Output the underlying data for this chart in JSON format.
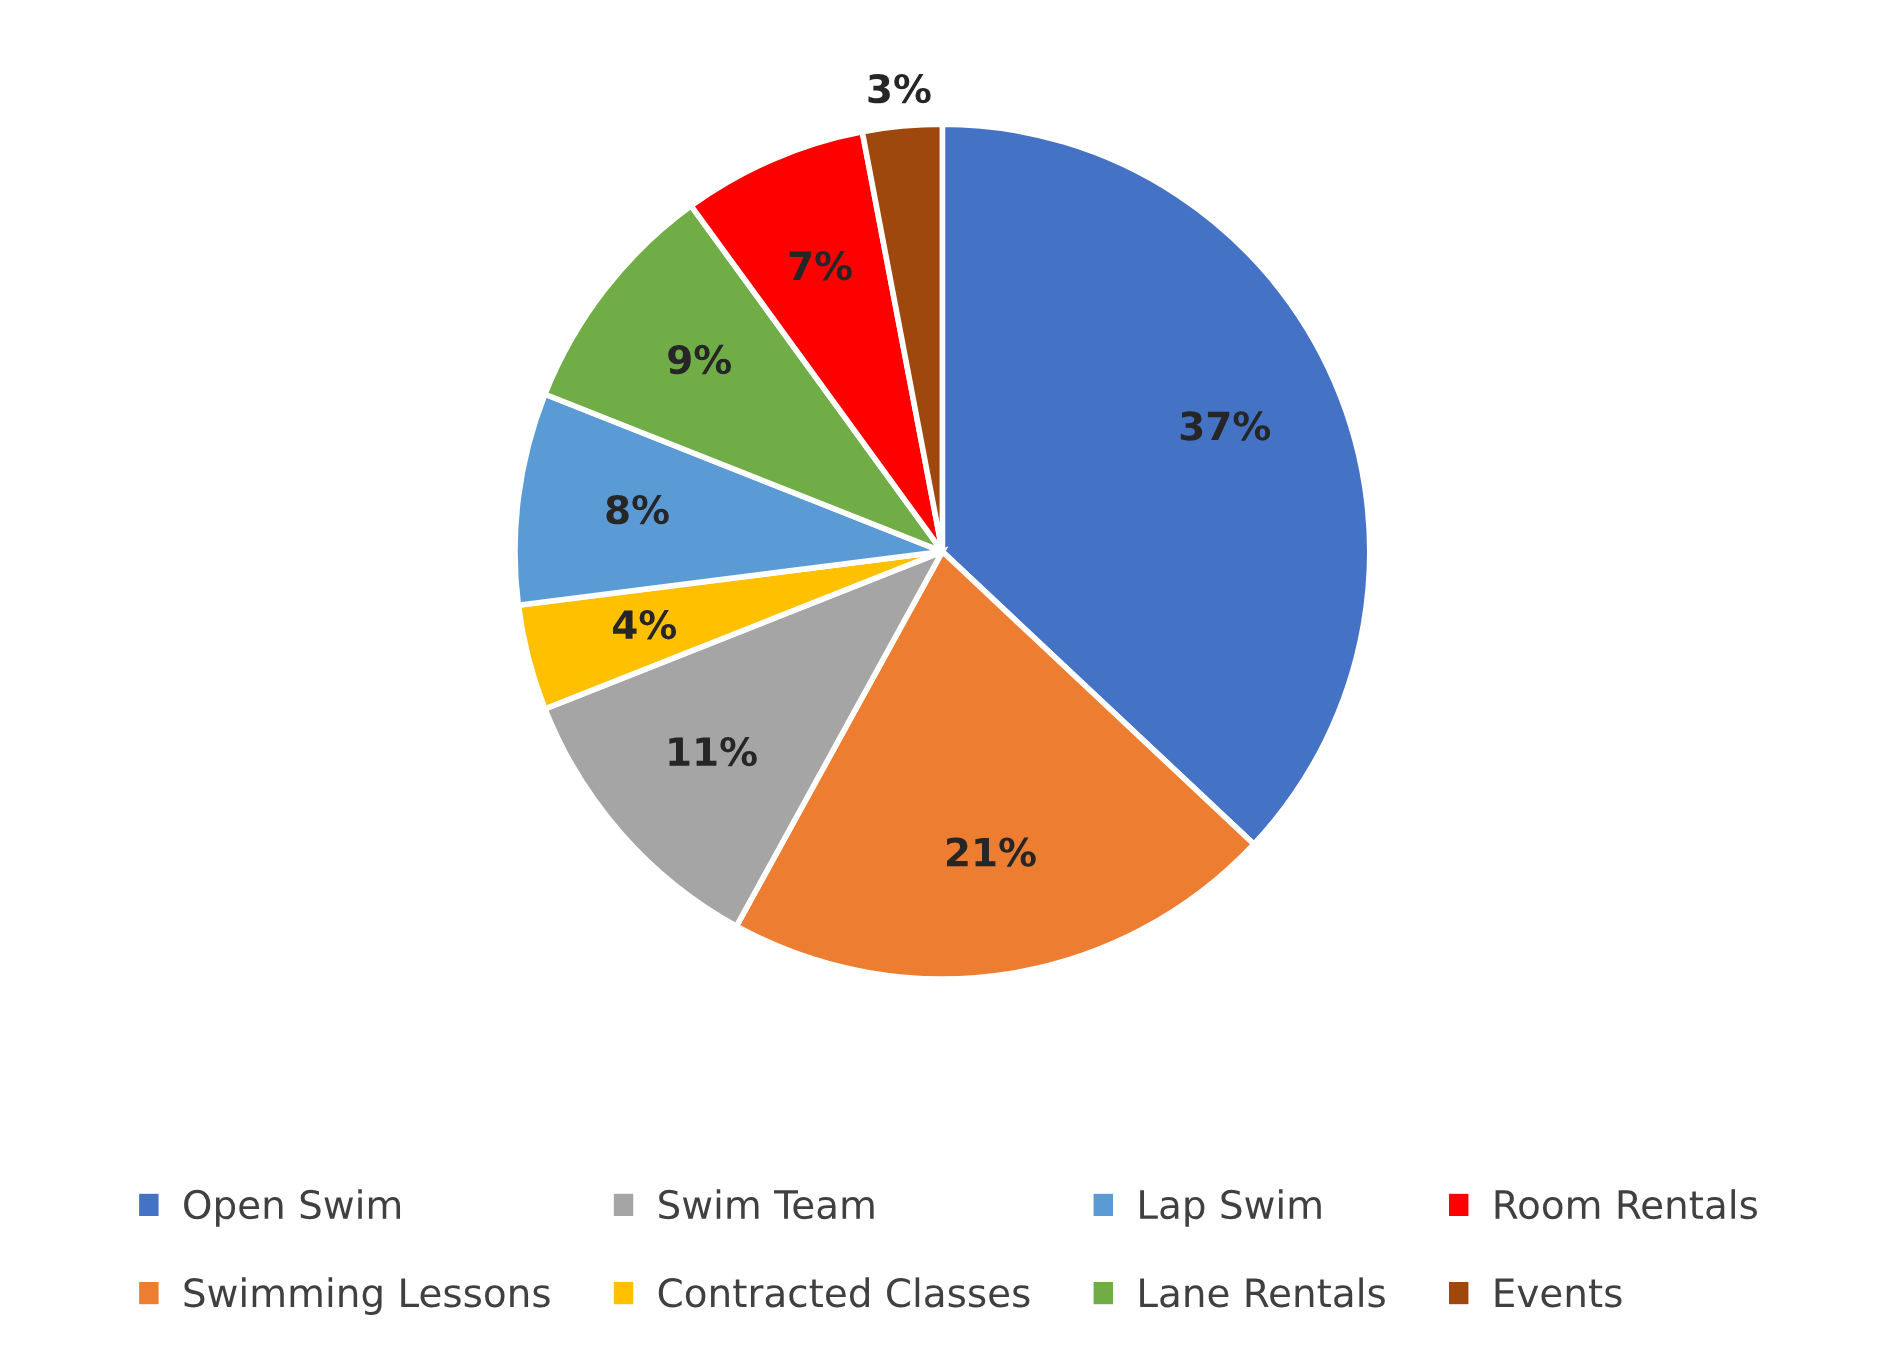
{
  "chart_data": {
    "type": "pie",
    "categories": [
      "Open Swim",
      "Swimming Lessons",
      "Swim Team",
      "Contracted Classes",
      "Lap Swim",
      "Lane Rentals",
      "Room Rentals",
      "Events"
    ],
    "values": [
      37,
      21,
      11,
      4,
      8,
      9,
      7,
      3
    ],
    "value_labels": [
      "37%",
      "21%",
      "11%",
      "4%",
      "8%",
      "9%",
      "7%",
      "3%"
    ],
    "colors": [
      "#4472c4",
      "#ed7d31",
      "#a5a5a5",
      "#ffc000",
      "#5b9bd5",
      "#70ad47",
      "#ff0000",
      "#9e480e"
    ],
    "legend": "bottom"
  }
}
